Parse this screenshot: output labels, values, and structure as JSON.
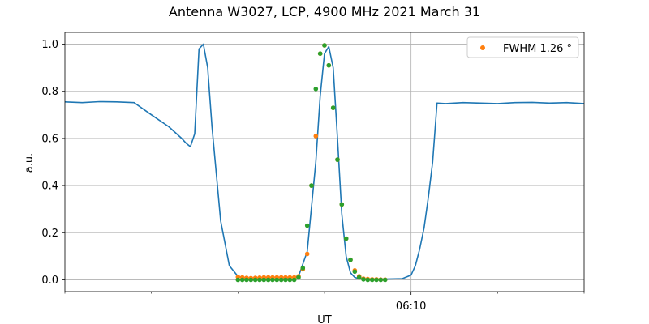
{
  "chart_data": {
    "type": "line",
    "title": "Antenna W3027, LCP, 4900 MHz 2021 March 31",
    "xlabel": "UT",
    "ylabel": "a.u.",
    "x_unit": "minutes",
    "xlim": [
      6.0,
      12.0
    ],
    "ylim": [
      -0.05,
      1.05
    ],
    "yticks": [
      0.0,
      0.2,
      0.4,
      0.6,
      0.8,
      1.0
    ],
    "ytick_labels": [
      "0.0",
      "0.2",
      "0.4",
      "0.6",
      "0.8",
      "1.0"
    ],
    "xticks": [
      10.0
    ],
    "xtick_labels": [
      "06:10"
    ],
    "grid": true,
    "legend": {
      "position": "top-right",
      "entries": [
        "FWHM 1.26$^\\circ$"
      ],
      "display": [
        "FWHM 1.26 °"
      ]
    },
    "series": [
      {
        "name": "",
        "kind": "line",
        "color": "#1f77b4",
        "x": [
          6.0,
          6.2,
          6.4,
          6.6,
          6.8,
          7.0,
          7.2,
          7.35,
          7.4,
          7.45,
          7.5,
          7.55,
          7.6,
          7.65,
          7.7,
          7.8,
          7.9,
          8.0,
          8.1,
          8.2,
          8.3,
          8.5,
          8.7,
          8.8,
          8.9,
          8.95,
          9.0,
          9.05,
          9.1,
          9.15,
          9.2,
          9.25,
          9.3,
          9.35,
          9.4,
          9.5,
          9.7,
          9.9,
          10.0,
          10.05,
          10.1,
          10.15,
          10.2,
          10.25,
          10.3,
          10.4,
          10.6,
          10.8,
          11.0,
          11.2,
          11.4,
          11.6,
          11.8,
          12.0
        ],
        "y": [
          0.755,
          0.752,
          0.756,
          0.755,
          0.752,
          0.7,
          0.65,
          0.6,
          0.58,
          0.565,
          0.62,
          0.98,
          1.0,
          0.9,
          0.65,
          0.25,
          0.06,
          0.015,
          0.005,
          0.003,
          0.003,
          0.003,
          0.015,
          0.12,
          0.5,
          0.78,
          0.96,
          0.99,
          0.9,
          0.6,
          0.28,
          0.1,
          0.03,
          0.01,
          0.005,
          0.003,
          0.003,
          0.005,
          0.02,
          0.06,
          0.13,
          0.22,
          0.35,
          0.5,
          0.75,
          0.748,
          0.752,
          0.75,
          0.748,
          0.752,
          0.753,
          0.75,
          0.752,
          0.748
        ]
      },
      {
        "name": "FWHM 1.26 °",
        "kind": "points",
        "color": "#ff7f0e",
        "x": [
          8.0,
          8.05,
          8.1,
          8.15,
          8.2,
          8.25,
          8.3,
          8.35,
          8.4,
          8.45,
          8.5,
          8.55,
          8.6,
          8.65,
          8.7,
          8.75,
          8.8,
          8.85,
          8.9,
          8.95,
          9.0,
          9.05,
          9.1,
          9.15,
          9.2,
          9.25,
          9.3,
          9.35,
          9.4,
          9.45,
          9.5,
          9.55,
          9.6,
          9.65,
          9.7
        ],
        "y": [
          0.012,
          0.01,
          0.008,
          0.007,
          0.008,
          0.009,
          0.01,
          0.01,
          0.01,
          0.01,
          0.01,
          0.01,
          0.01,
          0.01,
          0.015,
          0.045,
          0.11,
          0.4,
          0.61,
          0.96,
          0.995,
          0.91,
          0.73,
          0.51,
          0.32,
          0.175,
          0.085,
          0.04,
          0.015,
          0.005,
          0.003,
          0.002,
          0.002,
          0.001,
          0.001
        ]
      },
      {
        "name": "",
        "kind": "points",
        "color": "#2ca02c",
        "x": [
          8.0,
          8.05,
          8.1,
          8.15,
          8.2,
          8.25,
          8.3,
          8.35,
          8.4,
          8.45,
          8.5,
          8.55,
          8.6,
          8.65,
          8.7,
          8.75,
          8.8,
          8.85,
          8.9,
          8.95,
          9.0,
          9.05,
          9.1,
          9.15,
          9.2,
          9.25,
          9.3,
          9.35,
          9.4,
          9.45,
          9.5,
          9.55,
          9.6,
          9.65,
          9.7
        ],
        "y": [
          0.0,
          0.0,
          0.0,
          0.0,
          0.0,
          0.0,
          0.0,
          0.0,
          0.0,
          0.0,
          0.0,
          0.0,
          0.0,
          0.0,
          0.01,
          0.05,
          0.23,
          0.4,
          0.81,
          0.96,
          0.995,
          0.91,
          0.73,
          0.51,
          0.32,
          0.175,
          0.085,
          0.035,
          0.01,
          0.002,
          0.0,
          0.0,
          0.0,
          0.0,
          0.0
        ]
      }
    ]
  }
}
